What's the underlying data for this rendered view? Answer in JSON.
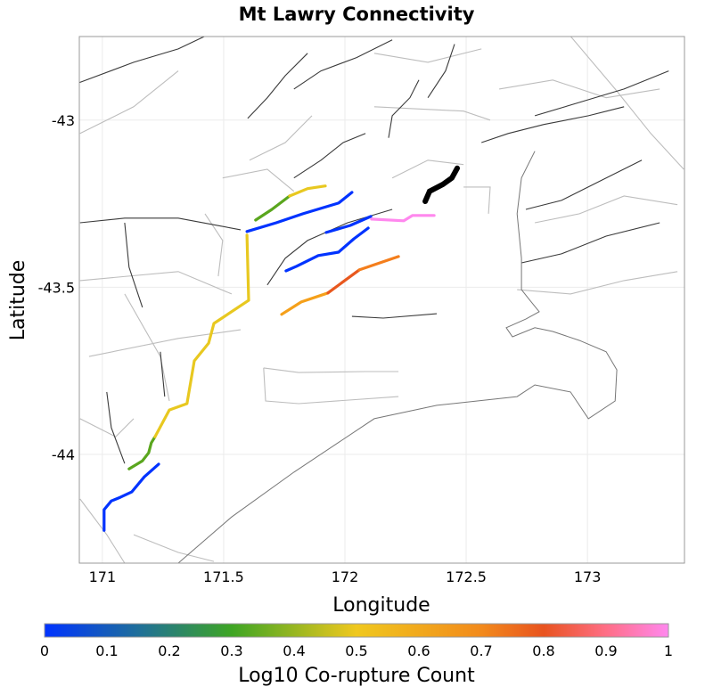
{
  "chart_data": {
    "type": "map",
    "title": "Mt Lawry Connectivity",
    "xlabel": "Longitude",
    "ylabel": "Latitude",
    "xlim": [
      170.905,
      173.4
    ],
    "ylim": [
      -44.325,
      -42.75
    ],
    "xticks": [
      171,
      171.5,
      172,
      172.5,
      173
    ],
    "xtick_labels": [
      "171",
      "171.5",
      "172",
      "172.5",
      "173"
    ],
    "yticks": [
      -43,
      -43.5,
      -44
    ],
    "ytick_labels": [
      "-43",
      "-43.5",
      "-44"
    ],
    "grid": true,
    "colorbar": {
      "label": "Log10 Co-rupture Count",
      "range": [
        0,
        1
      ],
      "ticks": [
        0,
        0.1,
        0.2,
        0.3,
        0.4,
        0.5,
        0.6,
        0.7,
        0.8,
        0.9,
        1
      ],
      "tick_labels": [
        "0",
        "0.1",
        "0.2",
        "0.3",
        "0.4",
        "0.5",
        "0.6",
        "0.7",
        "0.8",
        "0.9",
        "1"
      ],
      "placement": "bottom",
      "stops": [
        {
          "v": 0,
          "color": "#0033ff"
        },
        {
          "v": 0.15,
          "color": "#1f6f9a"
        },
        {
          "v": 0.3,
          "color": "#3ea524"
        },
        {
          "v": 0.5,
          "color": "#f0c81e"
        },
        {
          "v": 0.7,
          "color": "#f28a1c"
        },
        {
          "v": 0.8,
          "color": "#e8531f"
        },
        {
          "v": 0.9,
          "color": "#ff6e86"
        },
        {
          "v": 1,
          "color": "#ff88ee"
        }
      ]
    },
    "source_section": {
      "name": "Mt Lawry",
      "color": "#000000",
      "coords": [
        [
          172.331,
          -43.243
        ],
        [
          172.349,
          -43.213
        ],
        [
          172.404,
          -43.192
        ],
        [
          172.441,
          -43.173
        ],
        [
          172.463,
          -43.144
        ]
      ]
    },
    "co_ruptures": [
      {
        "value": 0.0,
        "color": "#0033ff",
        "coords": [
          [
            171.007,
            -44.227
          ],
          [
            171.007,
            -44.165
          ],
          [
            171.037,
            -44.139
          ],
          [
            171.074,
            -44.128
          ],
          [
            171.121,
            -44.112
          ],
          [
            171.173,
            -44.067
          ],
          [
            171.232,
            -44.029
          ]
        ]
      },
      {
        "value": 0.3,
        "color": "#5aa61e",
        "coords": [
          [
            171.11,
            -44.043
          ],
          [
            171.165,
            -44.019
          ],
          [
            171.191,
            -43.995
          ],
          [
            171.202,
            -43.965
          ],
          [
            171.217,
            -43.947
          ]
        ]
      },
      {
        "value": 0.5,
        "color": "#e8c820",
        "coords": [
          [
            171.217,
            -43.947
          ],
          [
            171.276,
            -43.867
          ],
          [
            171.349,
            -43.848
          ],
          [
            171.379,
            -43.72
          ],
          [
            171.438,
            -43.667
          ],
          [
            171.46,
            -43.608
          ],
          [
            171.603,
            -43.539
          ],
          [
            171.596,
            -43.344
          ]
        ]
      },
      {
        "value": 0.3,
        "color": "#5aa61e",
        "coords": [
          [
            171.632,
            -43.299
          ],
          [
            171.699,
            -43.267
          ],
          [
            171.772,
            -43.227
          ]
        ]
      },
      {
        "value": 0.5,
        "color": "#e8c820",
        "coords": [
          [
            171.772,
            -43.227
          ],
          [
            171.846,
            -43.205
          ],
          [
            171.919,
            -43.197
          ]
        ]
      },
      {
        "value": 0.0,
        "color": "#0033ff",
        "coords": [
          [
            171.596,
            -43.333
          ],
          [
            171.717,
            -43.307
          ],
          [
            171.827,
            -43.28
          ],
          [
            171.974,
            -43.248
          ],
          [
            172.029,
            -43.216
          ]
        ]
      },
      {
        "value": 0.0,
        "color": "#0033ff",
        "coords": [
          [
            171.923,
            -43.336
          ],
          [
            171.974,
            -43.325
          ],
          [
            172.022,
            -43.315
          ],
          [
            172.107,
            -43.288
          ]
        ]
      },
      {
        "value": 0.0,
        "color": "#0033ff",
        "coords": [
          [
            171.757,
            -43.451
          ],
          [
            171.801,
            -43.437
          ],
          [
            171.89,
            -43.405
          ],
          [
            171.974,
            -43.395
          ],
          [
            172.037,
            -43.355
          ],
          [
            172.096,
            -43.323
          ]
        ]
      },
      {
        "value": 0.65,
        "color": "#f5a01a",
        "coords": [
          [
            171.739,
            -43.581
          ],
          [
            171.82,
            -43.544
          ],
          [
            171.93,
            -43.517
          ]
        ]
      },
      {
        "value": 0.78,
        "color": "#e8581e",
        "coords": [
          [
            171.93,
            -43.517
          ],
          [
            172.059,
            -43.448
          ]
        ]
      },
      {
        "value": 0.7,
        "color": "#f47e1c",
        "coords": [
          [
            172.059,
            -43.448
          ],
          [
            172.221,
            -43.408
          ]
        ]
      },
      {
        "value": 0.97,
        "color": "#ff88ee",
        "coords": [
          [
            172.11,
            -43.296
          ],
          [
            172.243,
            -43.301
          ],
          [
            172.279,
            -43.285
          ],
          [
            172.368,
            -43.285
          ]
        ]
      }
    ],
    "background_faults_dark": [
      [
        [
          170.904,
          -42.888
        ],
        [
          171.129,
          -42.827
        ],
        [
          171.313,
          -42.787
        ],
        [
          171.423,
          -42.749
        ]
      ],
      [
        [
          171.599,
          -42.995
        ],
        [
          171.68,
          -42.933
        ],
        [
          171.754,
          -42.867
        ],
        [
          171.846,
          -42.8
        ]
      ],
      [
        [
          171.79,
          -42.907
        ],
        [
          171.901,
          -42.853
        ],
        [
          172.048,
          -42.813
        ],
        [
          172.195,
          -42.76
        ]
      ],
      [
        [
          171.79,
          -43.173
        ],
        [
          171.901,
          -43.12
        ],
        [
          171.993,
          -43.067
        ],
        [
          172.085,
          -43.04
        ]
      ],
      [
        [
          172.18,
          -43.053
        ],
        [
          172.195,
          -42.987
        ],
        [
          172.268,
          -42.933
        ],
        [
          172.305,
          -42.88
        ]
      ],
      [
        [
          172.342,
          -42.933
        ],
        [
          172.415,
          -42.853
        ],
        [
          172.452,
          -42.773
        ]
      ],
      [
        [
          172.563,
          -43.067
        ],
        [
          172.673,
          -43.04
        ],
        [
          172.82,
          -43.013
        ],
        [
          173.004,
          -42.987
        ],
        [
          173.151,
          -42.96
        ]
      ],
      [
        [
          172.746,
          -43.267
        ],
        [
          172.893,
          -43.24
        ],
        [
          173.077,
          -43.173
        ],
        [
          173.224,
          -43.12
        ]
      ],
      [
        [
          172.728,
          -43.427
        ],
        [
          172.893,
          -43.4
        ],
        [
          173.077,
          -43.347
        ],
        [
          173.298,
          -43.307
        ]
      ],
      [
        [
          170.908,
          -43.307
        ],
        [
          171.092,
          -43.293
        ],
        [
          171.313,
          -43.293
        ],
        [
          171.57,
          -43.328
        ]
      ],
      [
        [
          171.092,
          -43.307
        ],
        [
          171.11,
          -43.44
        ],
        [
          171.165,
          -43.56
        ]
      ],
      [
        [
          171.018,
          -43.813
        ],
        [
          171.037,
          -43.92
        ],
        [
          171.092,
          -44.027
        ]
      ],
      [
        [
          171.68,
          -43.493
        ],
        [
          171.754,
          -43.413
        ],
        [
          171.846,
          -43.36
        ],
        [
          172.011,
          -43.307
        ],
        [
          172.195,
          -43.267
        ]
      ],
      [
        [
          172.029,
          -43.587
        ],
        [
          172.158,
          -43.592
        ],
        [
          172.379,
          -43.579
        ]
      ],
      [
        [
          172.783,
          -42.987
        ],
        [
          172.967,
          -42.947
        ],
        [
          173.151,
          -42.907
        ],
        [
          173.335,
          -42.853
        ]
      ],
      [
        [
          171.239,
          -43.693
        ],
        [
          171.257,
          -43.827
        ]
      ]
    ],
    "background_faults_light": [
      [
        [
          171.665,
          -43.741
        ],
        [
          171.809,
          -43.755
        ],
        [
          172.085,
          -43.752
        ],
        [
          172.221,
          -43.752
        ]
      ],
      [
        [
          171.665,
          -43.741
        ],
        [
          171.673,
          -43.84
        ],
        [
          171.809,
          -43.848
        ],
        [
          172.221,
          -43.827
        ]
      ],
      [
        [
          170.908,
          -43.48
        ],
        [
          171.313,
          -43.453
        ],
        [
          171.533,
          -43.52
        ]
      ],
      [
        [
          170.945,
          -43.707
        ],
        [
          171.313,
          -43.653
        ],
        [
          171.57,
          -43.627
        ]
      ],
      [
        [
          172.121,
          -42.96
        ],
        [
          172.489,
          -42.973
        ],
        [
          172.599,
          -43.0
        ]
      ],
      [
        [
          170.908,
          -43.04
        ],
        [
          171.129,
          -42.96
        ],
        [
          171.313,
          -42.853
        ]
      ],
      [
        [
          172.489,
          -43.2
        ],
        [
          172.599,
          -43.2
        ],
        [
          172.592,
          -43.28
        ]
      ],
      [
        [
          172.71,
          -43.507
        ],
        [
          172.93,
          -43.52
        ],
        [
          173.151,
          -43.48
        ],
        [
          173.371,
          -43.453
        ]
      ],
      [
        [
          171.129,
          -44.24
        ],
        [
          171.313,
          -44.293
        ],
        [
          171.46,
          -44.32
        ]
      ],
      [
        [
          170.908,
          -44.133
        ],
        [
          171.018,
          -44.24
        ],
        [
          171.092,
          -44.325
        ]
      ],
      [
        [
          172.121,
          -42.8
        ],
        [
          172.342,
          -42.827
        ],
        [
          172.563,
          -42.787
        ]
      ],
      [
        [
          172.93,
          -42.749
        ],
        [
          173.114,
          -42.907
        ],
        [
          173.261,
          -43.04
        ],
        [
          173.397,
          -43.147
        ]
      ],
      [
        [
          171.607,
          -43.12
        ],
        [
          171.754,
          -43.067
        ],
        [
          171.864,
          -42.987
        ]
      ],
      [
        [
          171.423,
          -43.28
        ],
        [
          171.496,
          -43.36
        ],
        [
          171.478,
          -43.467
        ]
      ],
      [
        [
          170.908,
          -43.893
        ],
        [
          171.055,
          -43.947
        ],
        [
          171.129,
          -43.893
        ]
      ],
      [
        [
          172.636,
          -42.907
        ],
        [
          172.857,
          -42.88
        ],
        [
          173.077,
          -42.933
        ],
        [
          173.298,
          -42.907
        ]
      ],
      [
        [
          172.783,
          -43.307
        ],
        [
          172.967,
          -43.28
        ],
        [
          173.151,
          -43.227
        ],
        [
          173.371,
          -43.253
        ]
      ],
      [
        [
          172.195,
          -43.173
        ],
        [
          172.342,
          -43.12
        ],
        [
          172.489,
          -43.133
        ]
      ],
      [
        [
          171.496,
          -43.173
        ],
        [
          171.68,
          -43.147
        ],
        [
          171.79,
          -43.213
        ]
      ],
      [
        [
          171.092,
          -43.52
        ],
        [
          171.239,
          -43.707
        ],
        [
          171.276,
          -43.84
        ]
      ]
    ],
    "coastline": [
      [
        171.313,
        -44.325
      ],
      [
        171.533,
        -44.187
      ],
      [
        171.79,
        -44.053
      ],
      [
        172.121,
        -43.893
      ],
      [
        172.379,
        -43.853
      ],
      [
        172.71,
        -43.827
      ],
      [
        172.783,
        -43.792
      ],
      [
        172.93,
        -43.813
      ],
      [
        173.004,
        -43.893
      ],
      [
        173.114,
        -43.84
      ],
      [
        173.121,
        -43.747
      ],
      [
        173.077,
        -43.693
      ],
      [
        172.967,
        -43.659
      ],
      [
        172.857,
        -43.632
      ],
      [
        172.783,
        -43.621
      ],
      [
        172.691,
        -43.648
      ],
      [
        172.665,
        -43.621
      ],
      [
        172.746,
        -43.595
      ],
      [
        172.801,
        -43.573
      ],
      [
        172.765,
        -43.541
      ],
      [
        172.728,
        -43.507
      ],
      [
        172.728,
        -43.413
      ],
      [
        172.71,
        -43.28
      ],
      [
        172.728,
        -43.173
      ],
      [
        172.783,
        -43.093
      ]
    ]
  }
}
